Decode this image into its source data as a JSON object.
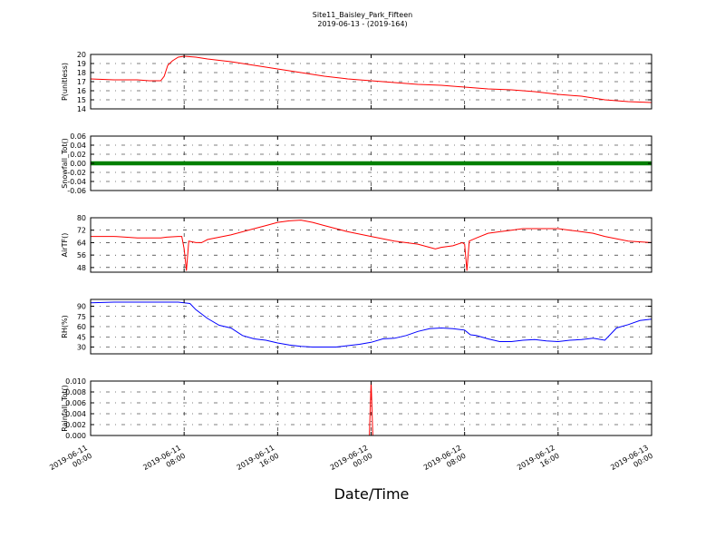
{
  "chart_data": {
    "type": "line",
    "title": "Site11_Baisley_Park_Fifteen",
    "subtitle": "2019-06-13 - (2019-164)",
    "xlabel": "Date/Time",
    "x_tick_labels": [
      [
        "2019-06-11",
        "00:00"
      ],
      [
        "2019-06-11",
        "08:00"
      ],
      [
        "2019-06-11",
        "16:00"
      ],
      [
        "2019-06-12",
        "00:00"
      ],
      [
        "2019-06-12",
        "08:00"
      ],
      [
        "2019-06-12",
        "16:00"
      ],
      [
        "2019-06-13",
        "00:00"
      ]
    ],
    "x_range_hours": [
      0,
      48
    ],
    "grid": true,
    "panels": [
      {
        "ylabel": "P(unitless)",
        "ylim": [
          14,
          20
        ],
        "yticks": [
          "14",
          "15",
          "16",
          "17",
          "18",
          "19",
          "20"
        ],
        "color": "#ff0000",
        "marker": false,
        "series": {
          "name": "P",
          "x": [
            0,
            2,
            4,
            5,
            6,
            6.3,
            6.6,
            7,
            7.5,
            8,
            9,
            10,
            12,
            14,
            16,
            18,
            20,
            22,
            24,
            26,
            28,
            30,
            32,
            34,
            36,
            38,
            40,
            42,
            44,
            46,
            48
          ],
          "y": [
            17.3,
            17.2,
            17.2,
            17.1,
            17.1,
            17.6,
            18.8,
            19.3,
            19.7,
            19.8,
            19.7,
            19.5,
            19.2,
            18.8,
            18.4,
            18.0,
            17.6,
            17.3,
            17.1,
            16.9,
            16.7,
            16.6,
            16.4,
            16.2,
            16.1,
            15.9,
            15.6,
            15.4,
            15.0,
            14.8,
            14.7
          ]
        }
      },
      {
        "ylabel": "Snowfall_Tot()",
        "ylim": [
          -0.06,
          0.06
        ],
        "yticks": [
          "-0.06",
          "-0.04",
          "-0.02",
          "0.00",
          "0.02",
          "0.04",
          "0.06"
        ],
        "color": "#008000",
        "marker": true,
        "series": {
          "name": "Snowfall_Tot",
          "x": [
            0,
            48
          ],
          "y": [
            0,
            0
          ]
        }
      },
      {
        "ylabel": "AirTF()",
        "ylim": [
          45,
          80
        ],
        "yticks": [
          "48",
          "56",
          "64",
          "72",
          "80"
        ],
        "color": "#ff0000",
        "marker": false,
        "series": {
          "name": "AirTF",
          "x": [
            0,
            2,
            3,
            4,
            5,
            6,
            6.5,
            7.5,
            7.8,
            8.0,
            8.2,
            8.4,
            9,
            9.5,
            10,
            12,
            14,
            15,
            16,
            17,
            18,
            19,
            20,
            22,
            24,
            26,
            28,
            29,
            29.5,
            30,
            31,
            31.8,
            32.0,
            32.2,
            32.4,
            33,
            34,
            35,
            36,
            37,
            38,
            39,
            40,
            41,
            42,
            43,
            44,
            46,
            48
          ],
          "y": [
            68,
            68,
            67.5,
            67,
            67,
            67,
            67.5,
            68,
            68,
            60,
            46,
            65,
            64,
            64,
            66,
            69,
            73,
            75,
            77,
            78,
            78.5,
            77,
            75,
            71,
            68,
            65,
            63,
            61,
            60,
            61,
            62,
            64,
            63,
            46,
            65,
            67,
            70,
            71,
            72,
            73,
            73,
            73,
            73,
            72,
            71,
            70,
            68,
            65,
            64
          ]
        }
      },
      {
        "ylabel": "RH(%)",
        "ylim": [
          20,
          100
        ],
        "yticks": [
          "30",
          "45",
          "60",
          "75",
          "90"
        ],
        "color": "#0000ff",
        "marker": false,
        "series": {
          "name": "RH",
          "x": [
            0,
            2,
            4,
            6,
            7,
            7.5,
            8,
            8.5,
            9,
            10,
            11,
            12,
            13,
            14,
            15,
            16,
            17,
            18,
            19,
            20,
            21,
            22,
            23,
            24,
            25,
            26,
            27,
            28,
            29,
            30,
            31,
            32,
            32.5,
            33,
            34,
            35,
            36,
            37,
            38,
            39,
            40,
            41,
            42,
            43,
            44,
            45,
            46,
            47,
            48
          ],
          "y": [
            95,
            96,
            96,
            96,
            96,
            96,
            95,
            94,
            85,
            72,
            62,
            58,
            47,
            42,
            40,
            36,
            33,
            31,
            30,
            30,
            30,
            32,
            34,
            37,
            42,
            43,
            47,
            53,
            57,
            58,
            57,
            55,
            48,
            47,
            42,
            38,
            38,
            40,
            41,
            39,
            38,
            40,
            41,
            43,
            40,
            58,
            63,
            69,
            71
          ]
        }
      },
      {
        "ylabel": "Rainfall_Tot()",
        "ylim": [
          0,
          0.01
        ],
        "yticks": [
          "0.000",
          "0.002",
          "0.004",
          "0.006",
          "0.008",
          "0.010"
        ],
        "color": "#ff0000",
        "marker": false,
        "series": {
          "name": "Rainfall_Tot",
          "x": [
            0,
            23.85,
            24.0,
            24.15,
            48
          ],
          "y": [
            0,
            0,
            0.01,
            0,
            0
          ]
        }
      }
    ]
  }
}
